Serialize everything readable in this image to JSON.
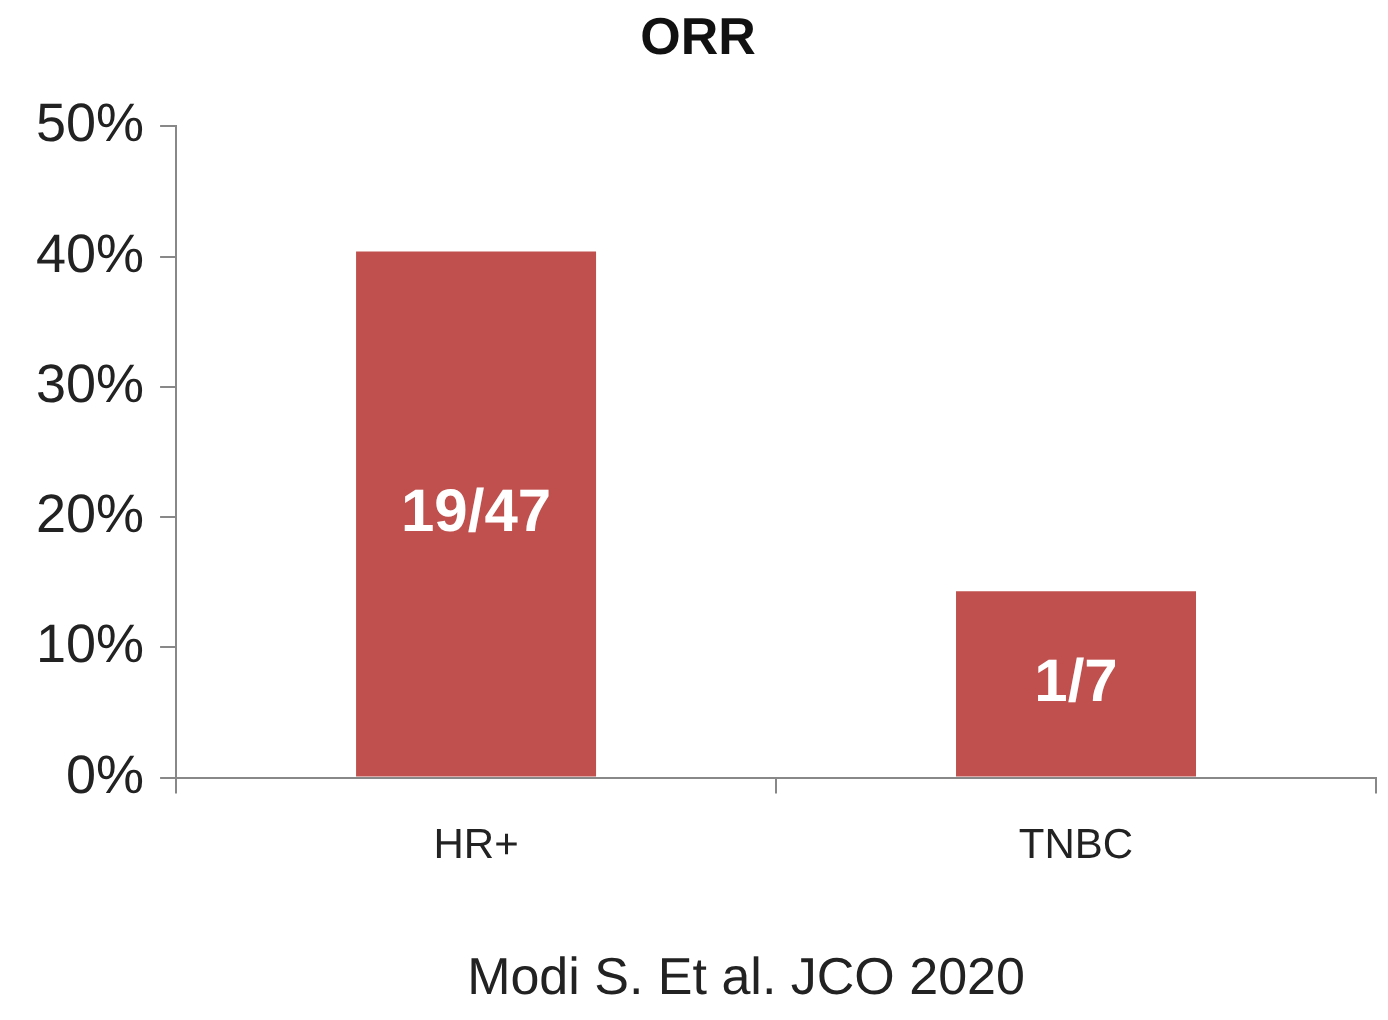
{
  "chart_data": {
    "type": "bar",
    "title": "ORR",
    "categories": [
      "HR+",
      "TNBC"
    ],
    "values": [
      40.4,
      14.3
    ],
    "value_labels": [
      "19/47",
      "1/7"
    ],
    "color": "#c0504d",
    "ylim": [
      0,
      50
    ],
    "yticks": [
      {
        "value": 0,
        "label": "0%"
      },
      {
        "value": 10,
        "label": "10%"
      },
      {
        "value": 20,
        "label": "20%"
      },
      {
        "value": 30,
        "label": "30%"
      },
      {
        "value": 40,
        "label": "40%"
      },
      {
        "value": 50,
        "label": "50%"
      }
    ],
    "grid": false,
    "legend": false,
    "annotations": [
      "Modi S. Et al. JCO 2020"
    ]
  }
}
